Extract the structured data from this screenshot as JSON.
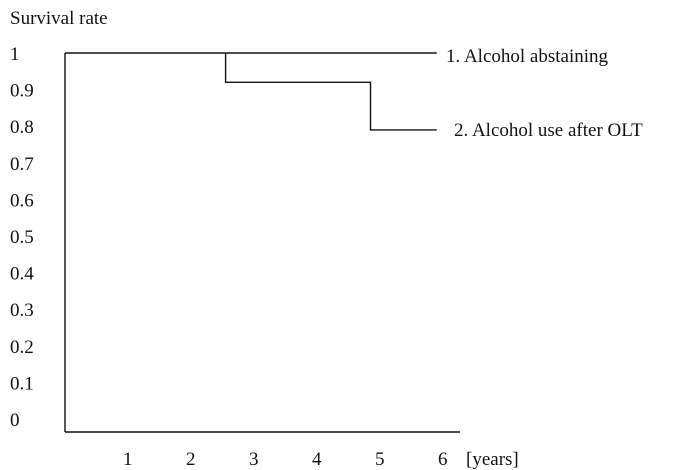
{
  "chart_data": {
    "type": "line",
    "title": "",
    "ylabel": "Survival rate",
    "xlabel": "[years]",
    "ylim": [
      0,
      1
    ],
    "xlim": [
      0,
      6
    ],
    "grid": false,
    "y_ticks": [
      "1",
      "0.9",
      "0.8",
      "0.7",
      "0.6",
      "0.5",
      "0.4",
      "0.3",
      "0.2",
      "0.1",
      "0"
    ],
    "x_ticks": [
      "1",
      "2",
      "3",
      "4",
      "5",
      "6"
    ],
    "series": [
      {
        "name": "1. Alcohol abstaining",
        "step": true,
        "points": [
          [
            0,
            1
          ],
          [
            5.9,
            1
          ]
        ]
      },
      {
        "name": "2. Alcohol use after OLT",
        "step": true,
        "points": [
          [
            2.55,
            1
          ],
          [
            2.55,
            0.92
          ],
          [
            4.85,
            0.92
          ],
          [
            4.85,
            0.79
          ],
          [
            5.9,
            0.79
          ]
        ]
      }
    ]
  }
}
